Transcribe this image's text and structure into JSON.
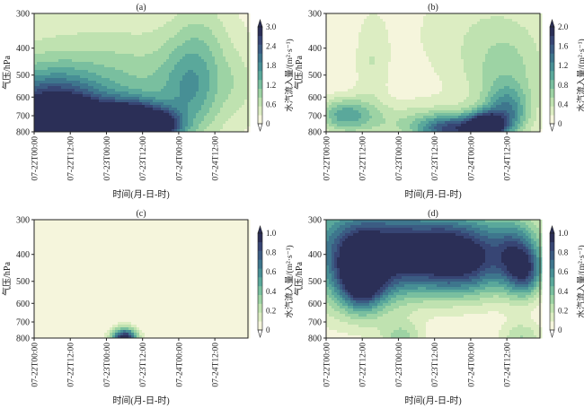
{
  "chart_data": [
    {
      "type": "heatmap",
      "title": "(a)",
      "ylabel": "气压/hPa",
      "xlabel": "时间(月-日-时)",
      "cbar_label": "水汽流入量/(m²·s⁻¹)",
      "xlim_hours": [
        0,
        71
      ],
      "ylim": [
        300,
        800
      ],
      "yscale": "log",
      "xticks": [
        "07-22T00:00",
        "07-22T12:00",
        "07-23T00:00",
        "07-23T12:00",
        "07-24T00:00",
        "07-24T12:00"
      ],
      "yticks": [
        "300",
        "400",
        "500",
        "600",
        "700",
        "800"
      ],
      "cbar_max": 3.0,
      "cbar_ticks": [
        "0",
        "0.6",
        "1.2",
        "1.8",
        "2.4",
        "3.0"
      ],
      "features": [
        [
          0,
          800,
          2.3,
          14,
          0.3
        ],
        [
          18,
          775,
          3.3,
          6,
          0.12
        ],
        [
          32,
          705,
          2.6,
          6,
          0.1
        ],
        [
          42,
          765,
          2.6,
          5,
          0.1
        ],
        [
          8,
          710,
          1.6,
          10,
          0.2
        ],
        [
          24,
          620,
          1.1,
          26,
          0.35
        ],
        [
          52,
          560,
          0.9,
          7,
          0.3
        ],
        [
          56,
          380,
          0.45,
          7,
          0.35
        ],
        [
          30,
          380,
          0.3,
          40,
          0.45
        ],
        [
          68,
          540,
          0.3,
          4,
          0.2
        ]
      ]
    },
    {
      "type": "heatmap",
      "title": "(b)",
      "ylabel": "气压/hPa",
      "xlabel": "时间(月-日-时)",
      "cbar_label": "水汽流入量/(m²·s⁻¹)",
      "xlim_hours": [
        0,
        71
      ],
      "ylim": [
        300,
        800
      ],
      "yscale": "log",
      "xticks": [
        "07-22T00:00",
        "07-22T12:00",
        "07-23T00:00",
        "07-23T12:00",
        "07-24T00:00",
        "07-24T12:00"
      ],
      "yticks": [
        "300",
        "400",
        "500",
        "600",
        "700",
        "800"
      ],
      "cbar_max": 2.0,
      "cbar_ticks": [
        "0",
        "0.4",
        "0.8",
        "1.2",
        "1.6",
        "2.0"
      ],
      "features": [
        [
          6,
          690,
          0.9,
          6,
          0.1
        ],
        [
          42,
          785,
          1.5,
          8,
          0.08
        ],
        [
          53,
          770,
          2.2,
          4,
          0.08
        ],
        [
          60,
          680,
          1.0,
          5,
          0.15
        ],
        [
          60,
          500,
          0.5,
          10,
          0.3
        ],
        [
          15,
          450,
          0.35,
          4,
          0.3
        ],
        [
          50,
          350,
          0.3,
          20,
          0.4
        ],
        [
          28,
          740,
          0.5,
          20,
          0.12
        ]
      ]
    },
    {
      "type": "heatmap",
      "title": "(c)",
      "ylabel": "气压/hPa",
      "xlabel": "时间(月-日-时)",
      "cbar_label": "水汽流入量/(m²·s⁻¹)",
      "xlim_hours": [
        0,
        71
      ],
      "ylim": [
        300,
        800
      ],
      "yscale": "log",
      "xticks": [
        "07-22T00:00",
        "07-22T12:00",
        "07-23T00:00",
        "07-23T12:00",
        "07-24T00:00",
        "07-24T12:00"
      ],
      "yticks": [
        "300",
        "400",
        "500",
        "600",
        "700",
        "800"
      ],
      "cbar_max": 1.0,
      "cbar_ticks": [
        "0",
        "0.2",
        "0.4",
        "0.6",
        "0.8",
        "1.0"
      ],
      "features": [
        [
          30,
          800,
          1.1,
          3,
          0.06
        ]
      ]
    },
    {
      "type": "heatmap",
      "title": "(d)",
      "ylabel": "气压/hPa",
      "xlabel": "时间(月-日-时)",
      "cbar_label": "水汽流入量/(m²·s⁻¹)",
      "xlim_hours": [
        0,
        71
      ],
      "ylim": [
        300,
        800
      ],
      "yscale": "log",
      "xticks": [
        "07-22T00:00",
        "07-22T12:00",
        "07-23T00:00",
        "07-23T12:00",
        "07-24T00:00",
        "07-24T12:00"
      ],
      "yticks": [
        "300",
        "400",
        "500",
        "600",
        "700",
        "800"
      ],
      "cbar_max": 1.0,
      "cbar_ticks": [
        "0",
        "0.2",
        "0.4",
        "0.6",
        "0.8",
        "1.0"
      ],
      "features": [
        [
          12,
          470,
          1.1,
          5,
          0.18
        ],
        [
          10,
          420,
          0.7,
          14,
          0.3
        ],
        [
          28,
          420,
          0.6,
          8,
          0.2
        ],
        [
          40,
          420,
          0.7,
          6,
          0.2
        ],
        [
          50,
          430,
          0.7,
          6,
          0.2
        ],
        [
          62,
          420,
          0.7,
          5,
          0.2
        ],
        [
          67,
          460,
          0.6,
          4,
          0.15
        ],
        [
          35,
          330,
          0.4,
          30,
          0.2
        ],
        [
          25,
          800,
          0.3,
          5,
          0.1
        ],
        [
          65,
          800,
          0.3,
          5,
          0.1
        ]
      ]
    }
  ],
  "colors": [
    "#f5f5dc",
    "#dcedc2",
    "#bfe2b0",
    "#9dd3a4",
    "#79bf9f",
    "#5aa89b",
    "#478f95",
    "#3e768d",
    "#3b5c83",
    "#374574",
    "#2b2f57"
  ]
}
